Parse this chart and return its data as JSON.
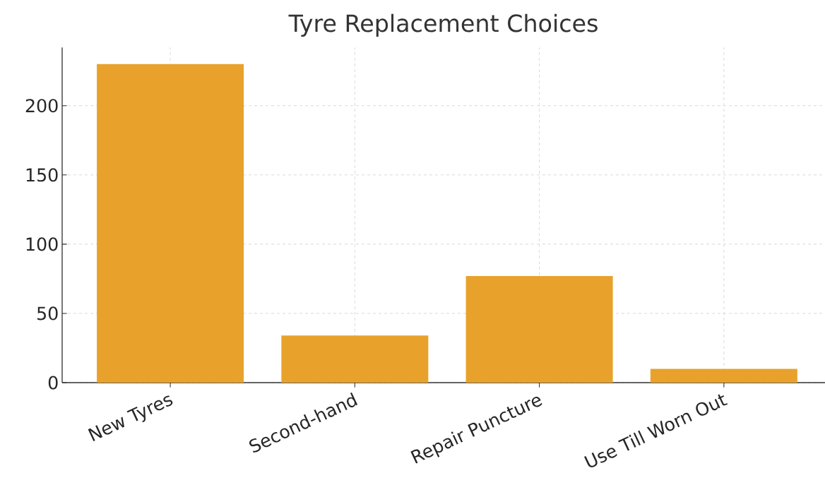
{
  "chart_data": {
    "type": "bar",
    "title": "Tyre Replacement Choices",
    "categories": [
      "New Tyres",
      "Second-hand",
      "Repair Puncture",
      "Use Till Worn Out"
    ],
    "values": [
      230,
      34,
      77,
      10
    ],
    "color": "#e8a22b",
    "ylim": [
      0,
      242
    ],
    "yticks": [
      0,
      50,
      100,
      150,
      200
    ],
    "grid": true
  }
}
